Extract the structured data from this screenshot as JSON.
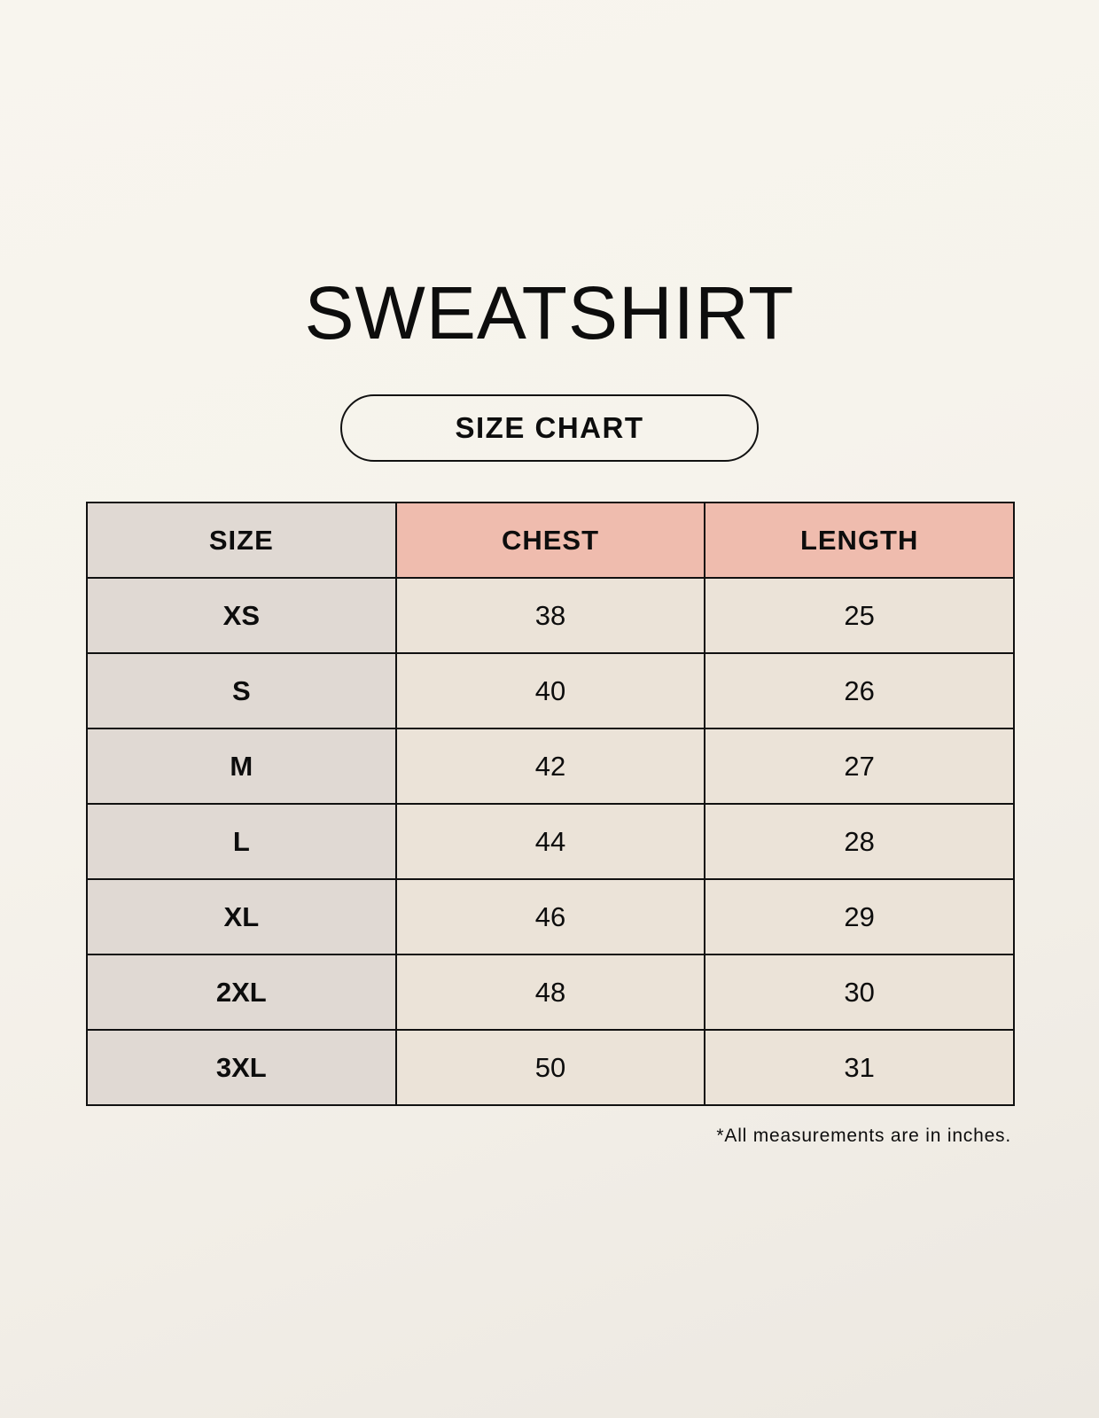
{
  "title": "SWEATSHIRT",
  "subtitle": "SIZE CHART",
  "table": {
    "headers": [
      "SIZE",
      "CHEST",
      "LENGTH"
    ],
    "rows": [
      [
        "XS",
        "38",
        "25"
      ],
      [
        "S",
        "40",
        "26"
      ],
      [
        "M",
        "42",
        "27"
      ],
      [
        "L",
        "44",
        "28"
      ],
      [
        "XL",
        "46",
        "29"
      ],
      [
        "2XL",
        "48",
        "30"
      ],
      [
        "3XL",
        "50",
        "31"
      ]
    ]
  },
  "note": "*All measurements are in inches.",
  "colors": {
    "size_column": "#e0d9d3",
    "header_accent": "#efbcae",
    "cells": "#ebe3d8"
  }
}
